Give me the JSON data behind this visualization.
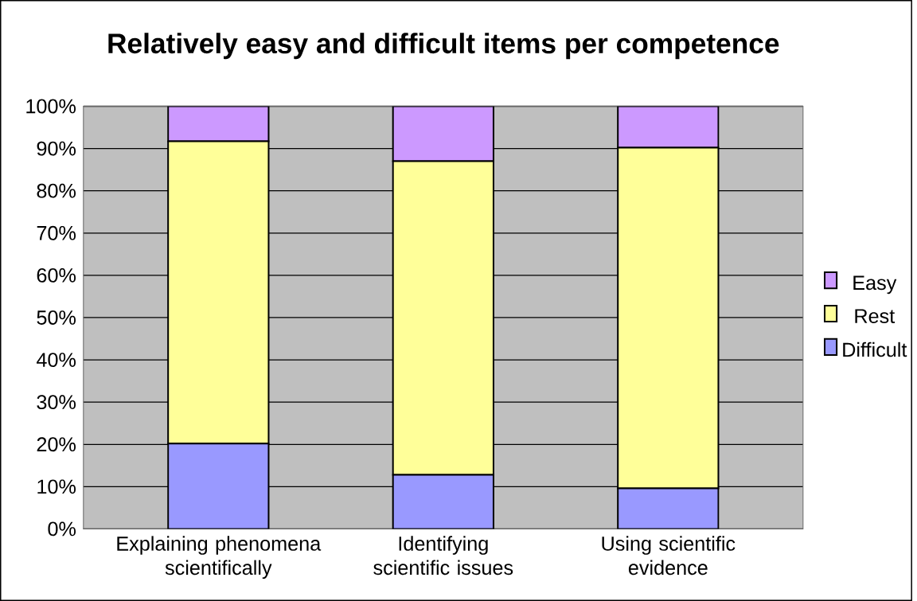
{
  "chart_data": {
    "type": "bar",
    "title": "Relatively easy and difficult items per competence",
    "stacked": true,
    "categories": [
      "Explaining phenomena scientifically",
      "Identifying scientific issues",
      "Using scientific evidence"
    ],
    "series": [
      {
        "name": "Difficult",
        "color": "#9999ff",
        "values": [
          20.2,
          12.8,
          9.6
        ]
      },
      {
        "name": "Rest",
        "color": "#ffff99",
        "values": [
          71.5,
          74.2,
          80.6
        ]
      },
      {
        "name": "Easy",
        "color": "#cc99ff",
        "values": [
          8.3,
          13.0,
          9.8
        ]
      }
    ],
    "ylim": [
      0,
      100
    ],
    "yticks": [
      {
        "value": 0,
        "label": "0%"
      },
      {
        "value": 10,
        "label": "10%"
      },
      {
        "value": 20,
        "label": "20%"
      },
      {
        "value": 30,
        "label": "30%"
      },
      {
        "value": 40,
        "label": "40%"
      },
      {
        "value": 50,
        "label": "50%"
      },
      {
        "value": 60,
        "label": "60%"
      },
      {
        "value": 70,
        "label": "70%"
      },
      {
        "value": 80,
        "label": "80%"
      },
      {
        "value": 90,
        "label": "90%"
      },
      {
        "value": 100,
        "label": "100%"
      }
    ],
    "grid": "y",
    "legend": "right"
  }
}
